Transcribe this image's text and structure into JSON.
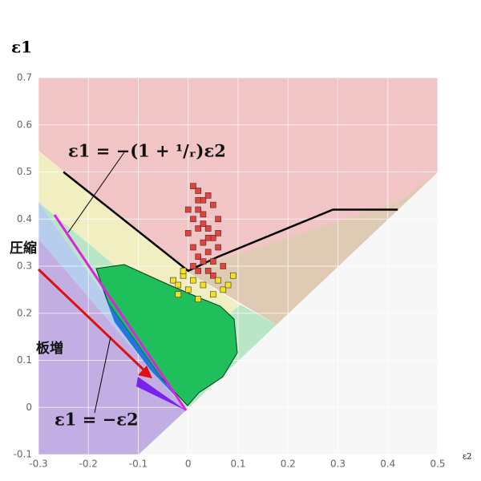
{
  "chart_data": {
    "type": "scatter",
    "ylabel": "ε1",
    "xlabel": "ε2",
    "xlim": [
      -0.3,
      0.5
    ],
    "ylim": [
      -0.1,
      0.7
    ],
    "xticks": [
      -0.3,
      -0.2,
      -0.1,
      0,
      0.1,
      0.2,
      0.3,
      0.4,
      0.5
    ],
    "yticks": [
      -0.1,
      0,
      0.1,
      0.2,
      0.3,
      0.4,
      0.5,
      0.6,
      0.7
    ],
    "grid": true,
    "annotations": [
      "ε1 = −(1 + ¹/ᵣ)ε2",
      "圧縮",
      "板増",
      "ε1 = −ε2"
    ],
    "series": [
      {
        "type": "line",
        "color": "#000000",
        "x": [
          -0.25,
          0,
          0.06,
          0.29,
          0.42
        ],
        "y": [
          0.5,
          0.29,
          0.32,
          0.42,
          0.42
        ]
      },
      {
        "type": "scatter",
        "color": "#e8413c",
        "x": [
          0.01,
          0.02,
          0.03,
          0.04,
          0.02,
          0.05,
          0.01,
          0.03,
          0.06,
          0.04,
          0.02,
          0.0,
          0.05,
          0.03,
          0.01,
          0.04,
          0.06,
          0.02,
          0.03,
          0.05,
          0.0,
          0.04,
          0.02,
          0.05,
          0.07,
          0.03,
          0.01,
          0.04,
          0.06,
          0.02
        ],
        "y": [
          0.47,
          0.46,
          0.44,
          0.45,
          0.42,
          0.43,
          0.4,
          0.41,
          0.4,
          0.38,
          0.38,
          0.37,
          0.36,
          0.35,
          0.34,
          0.33,
          0.34,
          0.32,
          0.31,
          0.31,
          0.42,
          0.29,
          0.29,
          0.28,
          0.3,
          0.39,
          0.3,
          0.36,
          0.37,
          0.44
        ]
      },
      {
        "type": "scatter",
        "color": "#f4e21e",
        "x": [
          -0.03,
          -0.02,
          -0.01,
          0.0,
          -0.02,
          0.01,
          0.03,
          0.05,
          0.07,
          0.09,
          0.02,
          -0.01,
          0.06,
          0.08
        ],
        "y": [
          0.27,
          0.26,
          0.28,
          0.25,
          0.24,
          0.27,
          0.26,
          0.24,
          0.25,
          0.28,
          0.23,
          0.29,
          0.27,
          0.26
        ]
      }
    ]
  }
}
